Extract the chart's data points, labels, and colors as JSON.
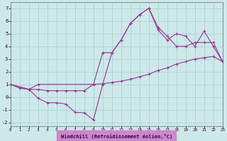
{
  "bg_color": "#cce8e8",
  "grid_color": "#aacccc",
  "line_color": "#993399",
  "axis_bottom_color": "#9933aa",
  "xlim": [
    0,
    23
  ],
  "ylim": [
    -2.3,
    7.5
  ],
  "xticks": [
    0,
    1,
    2,
    3,
    4,
    5,
    6,
    7,
    8,
    9,
    10,
    11,
    12,
    13,
    14,
    15,
    16,
    17,
    18,
    19,
    20,
    21,
    22,
    23
  ],
  "yticks": [
    -2,
    -1,
    0,
    1,
    2,
    3,
    4,
    5,
    6,
    7
  ],
  "xlabel": "Windchill (Refroidissement éolien,°C)",
  "line1_x": [
    0,
    1,
    2,
    3,
    4,
    5,
    6,
    7,
    8,
    9,
    10,
    11,
    12,
    13,
    14,
    15,
    16,
    17,
    18,
    19,
    20,
    21,
    22,
    23
  ],
  "line1_y": [
    1.0,
    0.7,
    0.6,
    0.6,
    0.5,
    0.5,
    0.5,
    0.5,
    0.5,
    1.0,
    1.05,
    1.15,
    1.25,
    1.4,
    1.6,
    1.8,
    2.1,
    2.3,
    2.6,
    2.8,
    3.0,
    3.1,
    3.2,
    2.8
  ],
  "line2_x": [
    0,
    2,
    3,
    4,
    5,
    6,
    7,
    8,
    9,
    10,
    11,
    12,
    13,
    14,
    15,
    16,
    17,
    18,
    19,
    20,
    21,
    22,
    23
  ],
  "line2_y": [
    1.0,
    0.6,
    -0.1,
    -0.45,
    -0.45,
    -0.55,
    -1.2,
    -1.25,
    -1.8,
    1.0,
    3.5,
    4.5,
    5.8,
    6.5,
    7.0,
    5.5,
    4.8,
    4.0,
    4.0,
    4.3,
    4.3,
    4.3,
    2.8
  ],
  "line3_x": [
    0,
    2,
    3,
    9,
    10,
    11,
    12,
    13,
    14,
    15,
    16,
    17,
    18,
    19,
    20,
    21,
    22,
    23
  ],
  "line3_y": [
    1.0,
    0.6,
    1.0,
    1.0,
    3.5,
    3.5,
    4.5,
    5.8,
    6.5,
    7.0,
    5.3,
    4.5,
    5.0,
    4.8,
    4.0,
    5.2,
    4.0,
    2.8
  ]
}
